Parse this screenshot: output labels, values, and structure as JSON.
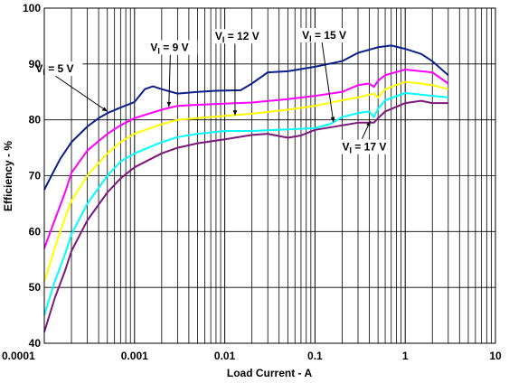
{
  "chart_data": {
    "type": "line",
    "title": "",
    "xlabel": "Load Current - A",
    "ylabel": "Efficiency - %",
    "x_scale": "log",
    "xlim": [
      0.0001,
      10
    ],
    "ylim": [
      40,
      100
    ],
    "x_ticks": [
      {
        "value": 0.0001,
        "label": "0.0001"
      },
      {
        "value": 0.001,
        "label": "0.001"
      },
      {
        "value": 0.01,
        "label": "0.01"
      },
      {
        "value": 0.1,
        "label": "0.1"
      },
      {
        "value": 1,
        "label": "1"
      },
      {
        "value": 10,
        "label": "10"
      }
    ],
    "y_ticks": [
      {
        "value": 40,
        "label": "40"
      },
      {
        "value": 50,
        "label": "50"
      },
      {
        "value": 60,
        "label": "60"
      },
      {
        "value": 70,
        "label": "70"
      },
      {
        "value": 80,
        "label": "80"
      },
      {
        "value": 90,
        "label": "90"
      },
      {
        "value": 100,
        "label": "100"
      }
    ],
    "grid": true,
    "series": [
      {
        "name": "VI = 5 V",
        "label_main": "V",
        "label_sub": "I",
        "label_rest": " = 5 V",
        "color": "#0c1f8a",
        "points": [
          [
            0.0001,
            67.5
          ],
          [
            0.00012,
            70
          ],
          [
            0.00015,
            73
          ],
          [
            0.0002,
            76
          ],
          [
            0.0003,
            78.8
          ],
          [
            0.0004,
            80.3
          ],
          [
            0.0005,
            81.2
          ],
          [
            0.0007,
            82.2
          ],
          [
            0.001,
            83.2
          ],
          [
            0.0013,
            85.5
          ],
          [
            0.0016,
            86
          ],
          [
            0.002,
            85.5
          ],
          [
            0.003,
            84.7
          ],
          [
            0.005,
            85
          ],
          [
            0.008,
            85.2
          ],
          [
            0.015,
            85.3
          ],
          [
            0.02,
            86.5
          ],
          [
            0.03,
            88.5
          ],
          [
            0.05,
            88.7
          ],
          [
            0.1,
            89.5
          ],
          [
            0.2,
            90.5
          ],
          [
            0.3,
            92
          ],
          [
            0.5,
            93
          ],
          [
            0.7,
            93.3
          ],
          [
            1,
            92.7
          ],
          [
            1.5,
            91.8
          ],
          [
            2,
            90.5
          ],
          [
            3,
            88
          ]
        ],
        "arrow_to": [
          0.0005,
          81.5
        ],
        "label_at": [
          8e-05,
          88.5
        ]
      },
      {
        "name": "VI = 9 V",
        "label_main": "V",
        "label_sub": "I",
        "label_rest": " = 9 V",
        "color": "#ff00ff",
        "points": [
          [
            0.0001,
            57
          ],
          [
            0.00013,
            62
          ],
          [
            0.00017,
            67
          ],
          [
            0.0002,
            70.5
          ],
          [
            0.0003,
            74.5
          ],
          [
            0.0005,
            77.5
          ],
          [
            0.0007,
            79
          ],
          [
            0.001,
            80.3
          ],
          [
            0.002,
            81.8
          ],
          [
            0.003,
            82.5
          ],
          [
            0.005,
            82.7
          ],
          [
            0.01,
            82.9
          ],
          [
            0.02,
            83.1
          ],
          [
            0.05,
            83.7
          ],
          [
            0.1,
            84.3
          ],
          [
            0.2,
            85
          ],
          [
            0.3,
            86.2
          ],
          [
            0.4,
            86.5
          ],
          [
            0.45,
            85.9
          ],
          [
            0.5,
            87
          ],
          [
            0.6,
            88
          ],
          [
            1,
            89
          ],
          [
            1.5,
            88.7
          ],
          [
            2,
            88.5
          ],
          [
            3,
            86.5
          ]
        ],
        "arrow_to": [
          0.0024,
          82.3
        ],
        "label_at": [
          0.0015,
          92.3
        ]
      },
      {
        "name": "VI = 12 V",
        "label_main": "V",
        "label_sub": "I",
        "label_rest": " = 12 V",
        "color": "#ffff00",
        "points": [
          [
            0.0001,
            51
          ],
          [
            0.00013,
            57
          ],
          [
            0.00017,
            62.5
          ],
          [
            0.0002,
            65.5
          ],
          [
            0.0003,
            70
          ],
          [
            0.0005,
            74
          ],
          [
            0.0007,
            76
          ],
          [
            0.001,
            77.5
          ],
          [
            0.002,
            79.2
          ],
          [
            0.003,
            80
          ],
          [
            0.005,
            80.3
          ],
          [
            0.01,
            80.7
          ],
          [
            0.02,
            81.1
          ],
          [
            0.05,
            81.8
          ],
          [
            0.1,
            82.5
          ],
          [
            0.2,
            83.5
          ],
          [
            0.3,
            84
          ],
          [
            0.45,
            84.7
          ],
          [
            0.5,
            84
          ],
          [
            0.6,
            85.5
          ],
          [
            1,
            86.8
          ],
          [
            1.5,
            86.5
          ],
          [
            2,
            86.2
          ],
          [
            3,
            85.5
          ]
        ],
        "arrow_to": [
          0.013,
          80.8
        ],
        "label_at": [
          0.0078,
          94.3
        ]
      },
      {
        "name": "VI = 15 V",
        "label_main": "V",
        "label_sub": "I",
        "label_rest": " = 15 V",
        "color": "#00ffff",
        "points": [
          [
            0.0001,
            45
          ],
          [
            0.00013,
            51
          ],
          [
            0.00017,
            56
          ],
          [
            0.0002,
            59.5
          ],
          [
            0.0003,
            65
          ],
          [
            0.0005,
            70
          ],
          [
            0.0007,
            72.5
          ],
          [
            0.001,
            74
          ],
          [
            0.002,
            76
          ],
          [
            0.003,
            76.9
          ],
          [
            0.005,
            77.5
          ],
          [
            0.01,
            78
          ],
          [
            0.02,
            78
          ],
          [
            0.05,
            78.3
          ],
          [
            0.1,
            78.5
          ],
          [
            0.15,
            79.3
          ],
          [
            0.2,
            80.5
          ],
          [
            0.3,
            81.2
          ],
          [
            0.4,
            81.5
          ],
          [
            0.45,
            80.5
          ],
          [
            0.5,
            82
          ],
          [
            0.6,
            83.5
          ],
          [
            1,
            84.8
          ],
          [
            1.5,
            84.5
          ],
          [
            2,
            84.3
          ],
          [
            3,
            84
          ]
        ],
        "arrow_to": [
          0.16,
          79.6
        ],
        "label_at": [
          0.072,
          94.5
        ]
      },
      {
        "name": "VI = 17 V",
        "label_main": "V",
        "label_sub": "I",
        "label_rest": " = 17 V",
        "color": "#7a1a7a",
        "points": [
          [
            0.0001,
            42
          ],
          [
            0.00013,
            48
          ],
          [
            0.00017,
            53
          ],
          [
            0.0002,
            56.5
          ],
          [
            0.0003,
            62
          ],
          [
            0.0005,
            67
          ],
          [
            0.0007,
            69.5
          ],
          [
            0.001,
            71.5
          ],
          [
            0.002,
            74
          ],
          [
            0.003,
            75
          ],
          [
            0.005,
            75.8
          ],
          [
            0.01,
            76.5
          ],
          [
            0.02,
            77.3
          ],
          [
            0.03,
            77.5
          ],
          [
            0.05,
            76.8
          ],
          [
            0.07,
            77.2
          ],
          [
            0.1,
            78.2
          ],
          [
            0.2,
            79
          ],
          [
            0.3,
            79.5
          ],
          [
            0.45,
            79.5
          ],
          [
            0.5,
            80.3
          ],
          [
            0.6,
            81.5
          ],
          [
            1,
            83
          ],
          [
            1.5,
            83.4
          ],
          [
            2,
            83
          ],
          [
            3,
            83
          ]
        ],
        "arrow_to": [
          0.41,
          79.8
        ],
        "label_at": [
          0.2,
          74.5
        ]
      }
    ]
  }
}
